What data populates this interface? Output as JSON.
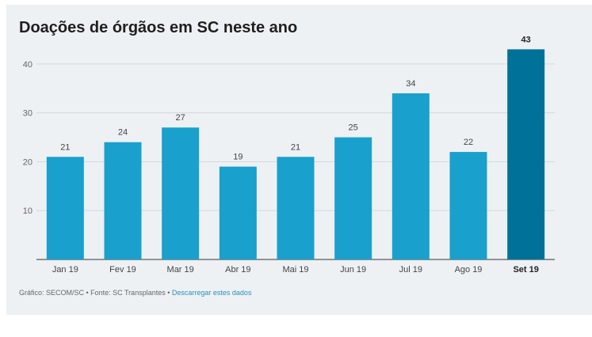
{
  "title": "Doações de órgãos em SC neste ano",
  "footer": {
    "source_text": "Gráfico: SECOM/SC • Fonte: SC Transplantes •",
    "download_link": "Descarregar estes dados"
  },
  "colors": {
    "bar": "#1aa0cd",
    "highlight_bar": "#00729a",
    "grid": "#d4d9dd",
    "axis": "#333333",
    "background": "#edf1f4"
  },
  "chart_data": {
    "type": "bar",
    "title": "Doações de órgãos em SC neste ano",
    "categories": [
      "Jan 19",
      "Fev 19",
      "Mar 19",
      "Abr 19",
      "Mai 19",
      "Jun 19",
      "Jul 19",
      "Ago 19",
      "Set 19"
    ],
    "values": [
      21,
      24,
      27,
      19,
      21,
      25,
      34,
      22,
      43
    ],
    "highlight_index": 8,
    "xlabel": "",
    "ylabel": "",
    "yticks": [
      10,
      20,
      30,
      40
    ],
    "ylim": [
      0,
      45
    ],
    "grid": true,
    "data_labels": true
  }
}
